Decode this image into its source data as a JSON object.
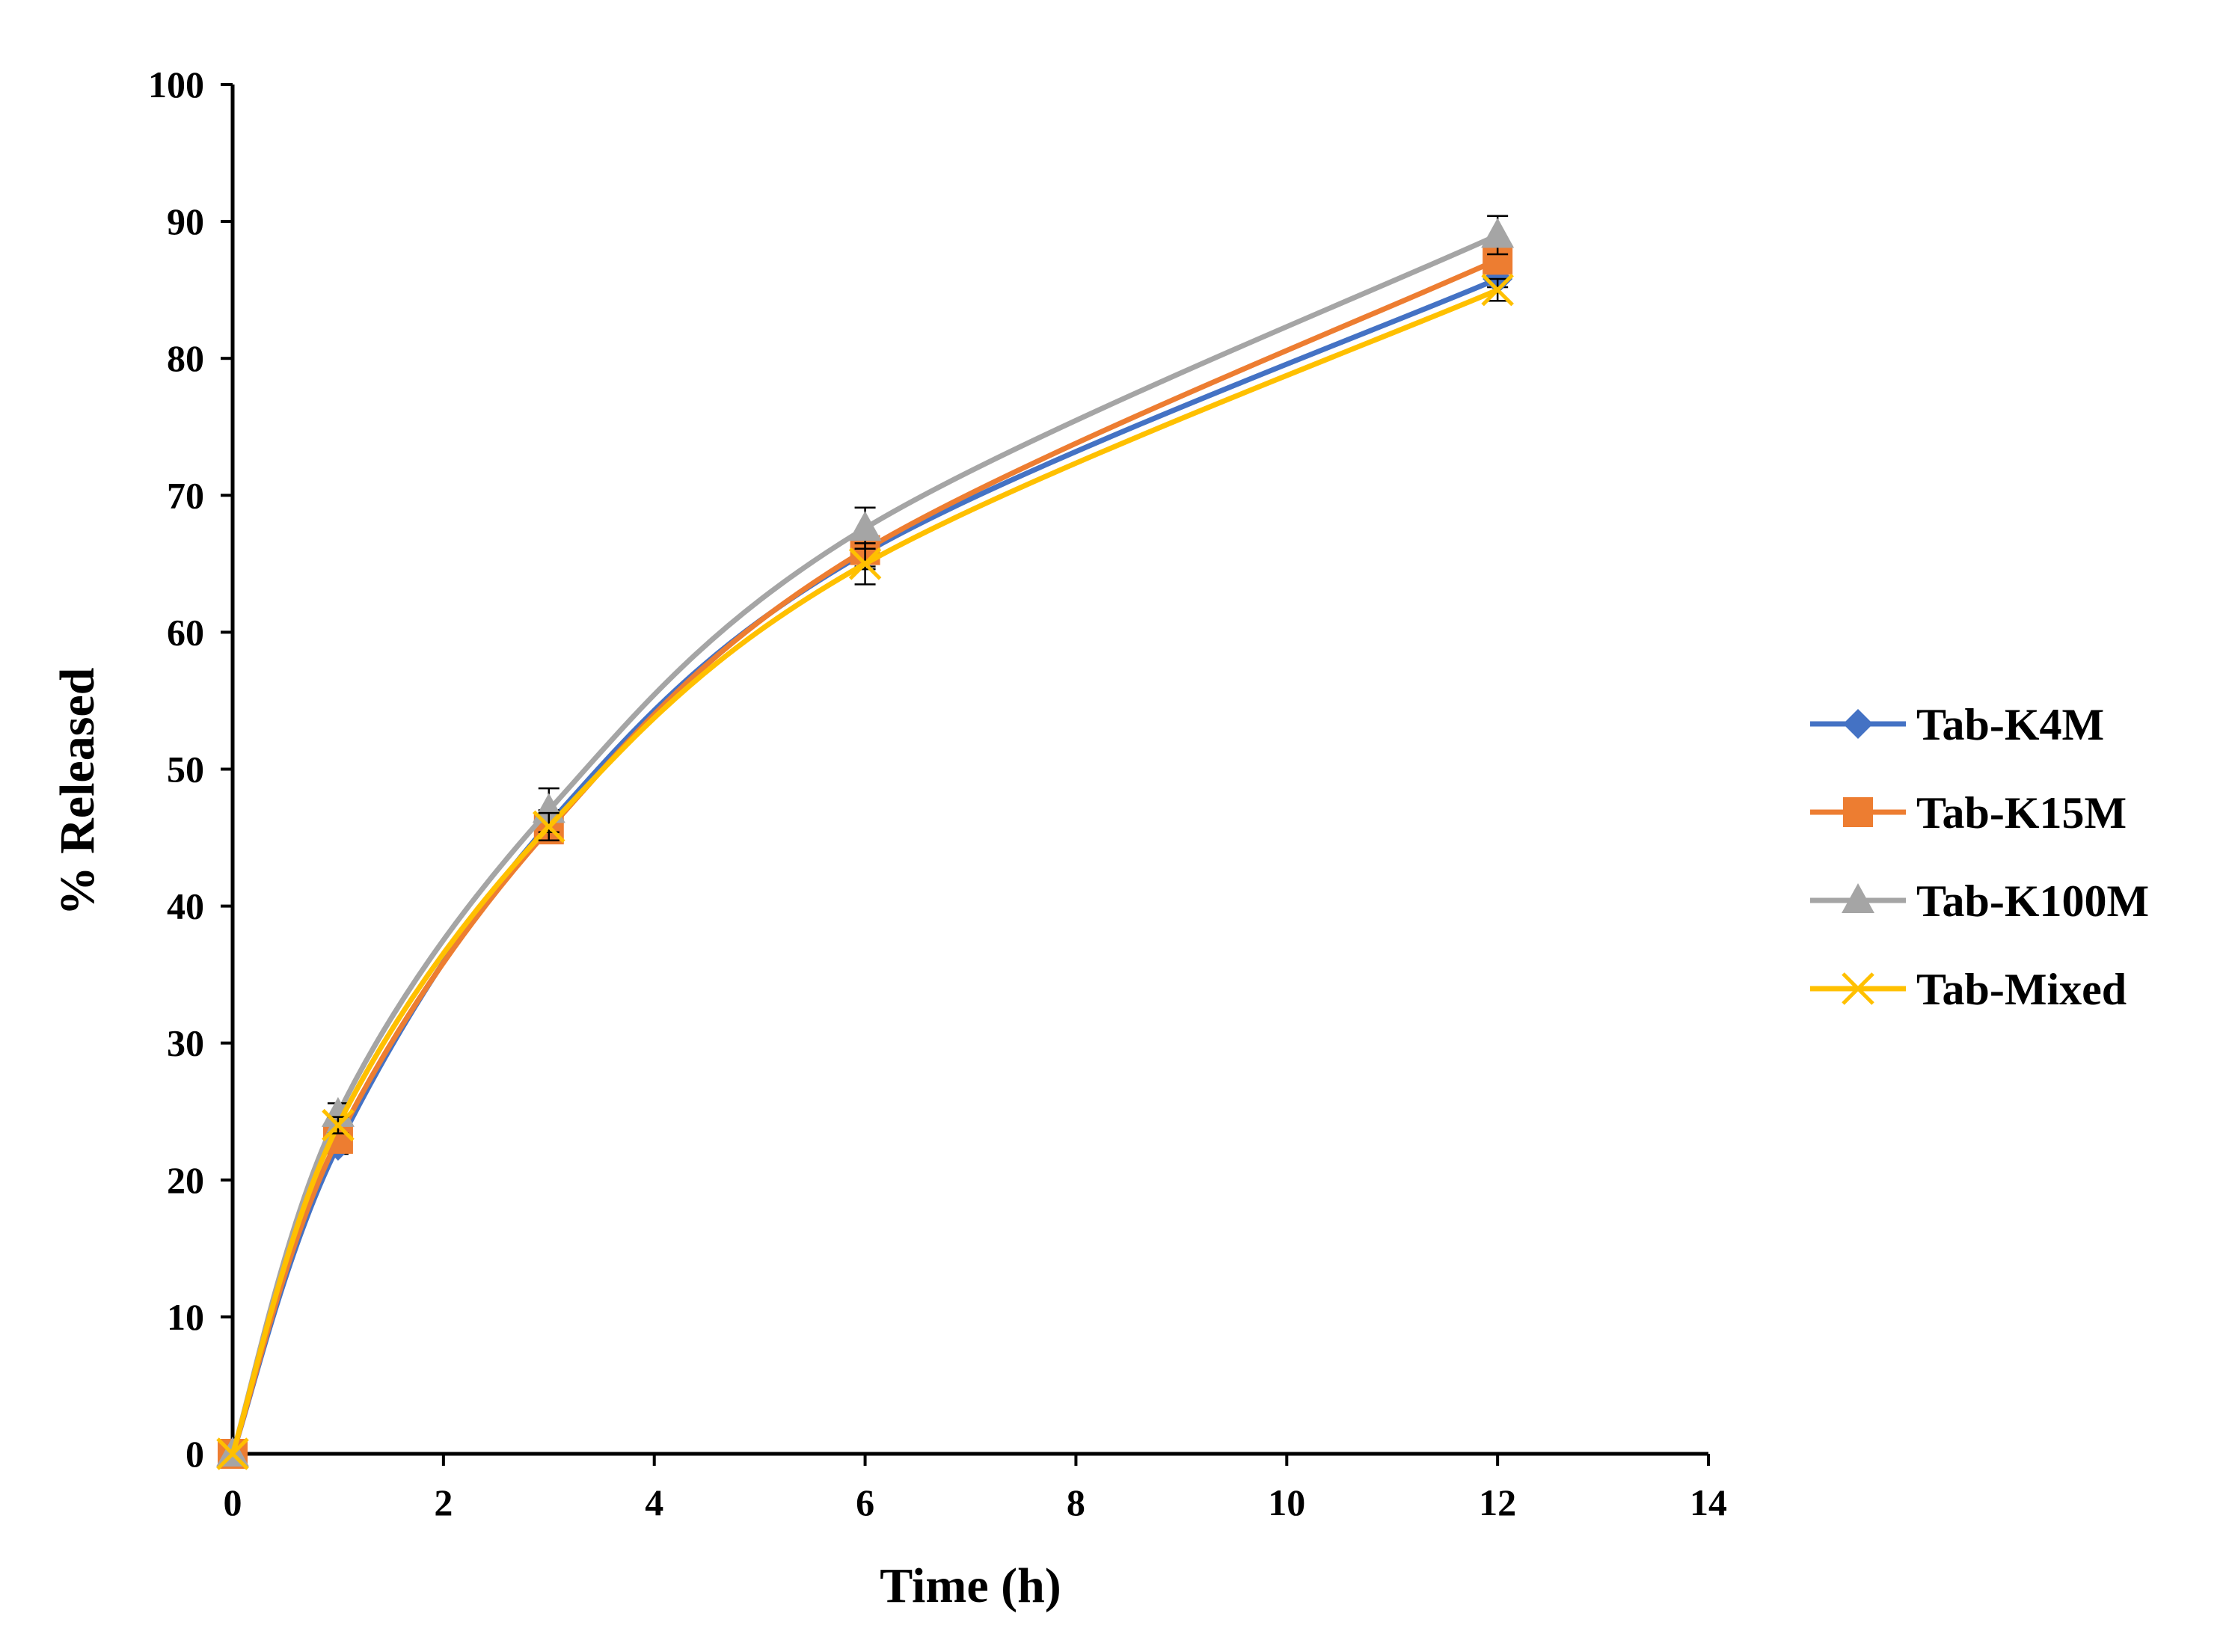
{
  "chart_data": {
    "type": "line",
    "title": "",
    "xlabel": "Time (h)",
    "ylabel": "% Released",
    "xlim": [
      0,
      14
    ],
    "ylim": [
      0,
      100
    ],
    "xticks": [
      0,
      2,
      4,
      6,
      8,
      10,
      12,
      14
    ],
    "yticks": [
      0,
      10,
      20,
      30,
      40,
      50,
      60,
      70,
      80,
      90,
      100
    ],
    "xtick_labels": [
      "0",
      "2",
      "4",
      "6",
      "8",
      "10",
      "12",
      "14"
    ],
    "ytick_labels": [
      "0",
      "10",
      "20",
      "30",
      "40",
      "50",
      "60",
      "70",
      "80",
      "90",
      "100"
    ],
    "grid": false,
    "legend_position": "right",
    "x": [
      0,
      1,
      3,
      6,
      12
    ],
    "series": [
      {
        "name": "Tab-K4M",
        "color": "#4472C4",
        "marker": "diamond",
        "values": [
          0,
          22.5,
          46.0,
          65.8,
          85.8
        ],
        "errors": [
          0,
          0.6,
          1.0,
          1.2,
          0.6
        ]
      },
      {
        "name": "Tab-K15M",
        "color": "#ED7D31",
        "marker": "square",
        "values": [
          0,
          23.0,
          45.6,
          66.0,
          87.2
        ],
        "errors": [
          0,
          0.6,
          1.0,
          1.2,
          0.8
        ]
      },
      {
        "name": "Tab-K100M",
        "color": "#A5A5A5",
        "marker": "triangle",
        "values": [
          0,
          24.8,
          47.0,
          67.6,
          89.0
        ],
        "errors": [
          0,
          0.8,
          1.6,
          1.5,
          1.4
        ]
      },
      {
        "name": "Tab-Mixed",
        "color": "#FFC000",
        "marker": "x",
        "values": [
          0,
          24.0,
          45.8,
          65.0,
          85.0
        ],
        "errors": [
          0,
          0.6,
          1.0,
          1.5,
          0.8
        ]
      }
    ]
  }
}
